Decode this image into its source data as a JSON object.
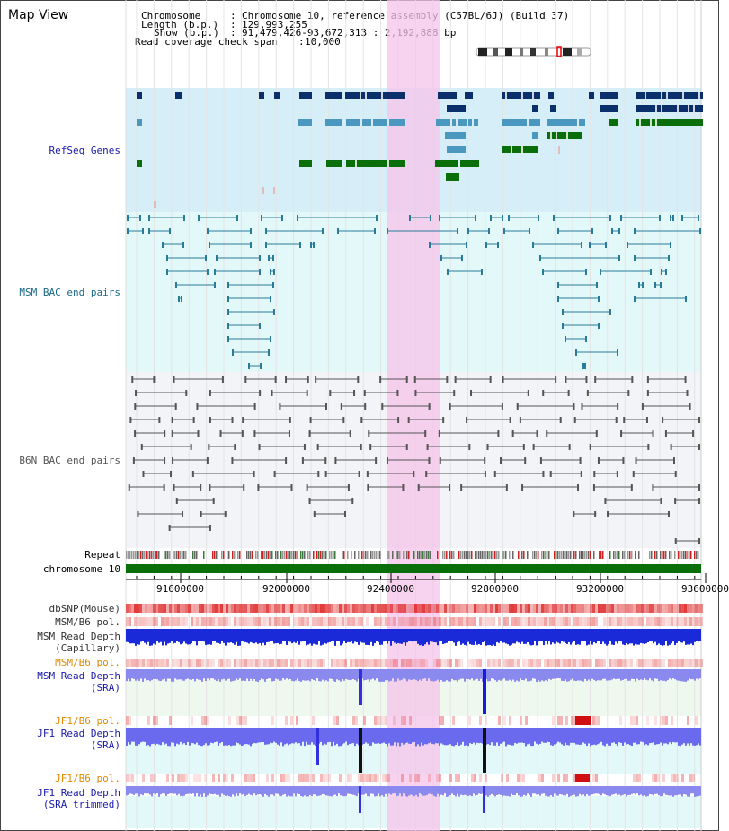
{
  "title": "Map View",
  "info": {
    "chromosome_label": "Chromosome",
    "chromosome_value": "Chromosome 10, reference assembly (C57BL/6J) (Build 37)",
    "length_label": "Length (b.p.)",
    "length_value": "129,993,255",
    "show_label": "Show (b.p.)",
    "show_value": "91,479,426-93,672,313 : 2,192,888 bp",
    "coverage_label": "Read coverage check span",
    "coverage_value": "10,000"
  },
  "tracks": {
    "refseq": "RefSeq Genes",
    "msm_bac": "MSM BAC end pairs",
    "b6n_bac": "B6N BAC end pairs",
    "repeat": "Repeat",
    "chromosome": "chromosome 10",
    "dbsnp": "dbSNP(Mouse)",
    "msm_b6_pol": "MSM/B6 pol.",
    "msm_rd_cap_1": "MSM Read Depth",
    "msm_rd_cap_2": "(Capillary)",
    "msm_b6_pol_2": "MSM/B6 pol.",
    "msm_rd_sra_1": "MSM Read Depth",
    "msm_rd_sra_2": "(SRA)",
    "jf1_b6_pol": "JF1/B6 pol.",
    "jf1_rd_sra_1": "JF1 Read Depth",
    "jf1_rd_sra_2": "(SRA)",
    "jf1_b6_pol_2": "JF1/B6 pol.",
    "jf1_rd_trim_1": "JF1 Read Depth",
    "jf1_rd_trim_2": "(SRA trimmed)"
  },
  "axis_ticks": [
    "91600000",
    "92000000",
    "92400000",
    "92800000",
    "93200000",
    "93600000"
  ],
  "colors": {
    "refseq_bg": "#d6eef8",
    "msm_bac_bg": "#e3f8f8",
    "b6n_bac_bg": "#f2f4f7",
    "highlight": "#f5c4ea",
    "gene_dark": "#0b2f6b",
    "gene_mid": "#4a97bf",
    "gene_green": "#0a6e0a",
    "msm_bac_line": "#2a7a9a",
    "b6n_bac_line": "#555555",
    "chromosome_bar": "#0a6e0a",
    "label_blue": "#1a1aaa",
    "label_teal": "#1a6a8a",
    "label_orange": "#e08a00"
  }
}
